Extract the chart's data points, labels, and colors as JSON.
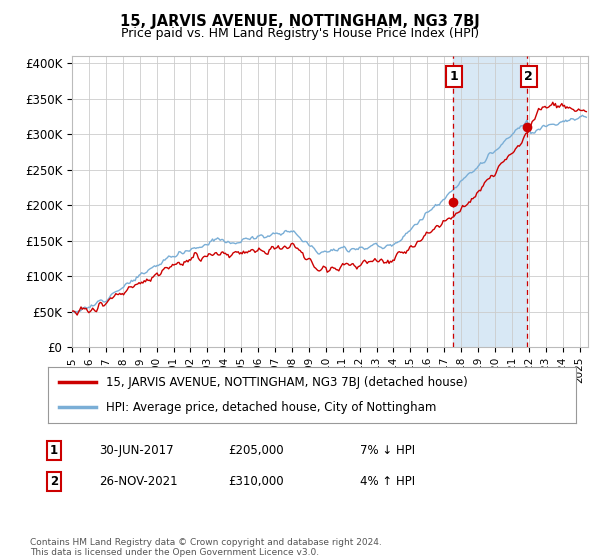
{
  "title": "15, JARVIS AVENUE, NOTTINGHAM, NG3 7BJ",
  "subtitle": "Price paid vs. HM Land Registry's House Price Index (HPI)",
  "ylabel_ticks": [
    "£0",
    "£50K",
    "£100K",
    "£150K",
    "£200K",
    "£250K",
    "£300K",
    "£350K",
    "£400K"
  ],
  "ytick_values": [
    0,
    50000,
    100000,
    150000,
    200000,
    250000,
    300000,
    350000,
    400000
  ],
  "ylim": [
    0,
    410000
  ],
  "background_color": "#ffffff",
  "grid_color": "#cccccc",
  "legend_entry1": "15, JARVIS AVENUE, NOTTINGHAM, NG3 7BJ (detached house)",
  "legend_entry2": "HPI: Average price, detached house, City of Nottingham",
  "sale1_date": "30-JUN-2017",
  "sale1_price": "£205,000",
  "sale1_hpi": "7% ↓ HPI",
  "sale2_date": "26-NOV-2021",
  "sale2_price": "£310,000",
  "sale2_hpi": "4% ↑ HPI",
  "copyright": "Contains HM Land Registry data © Crown copyright and database right 2024.\nThis data is licensed under the Open Government Licence v3.0.",
  "sale1_x": 2017.5,
  "sale1_y": 205000,
  "sale2_x": 2021.9,
  "sale2_y": 310000,
  "hpi_color": "#7aaed6",
  "price_color": "#cc0000",
  "highlight_bg": "#d8e8f5",
  "xmin": 1995,
  "xmax": 2025.5
}
